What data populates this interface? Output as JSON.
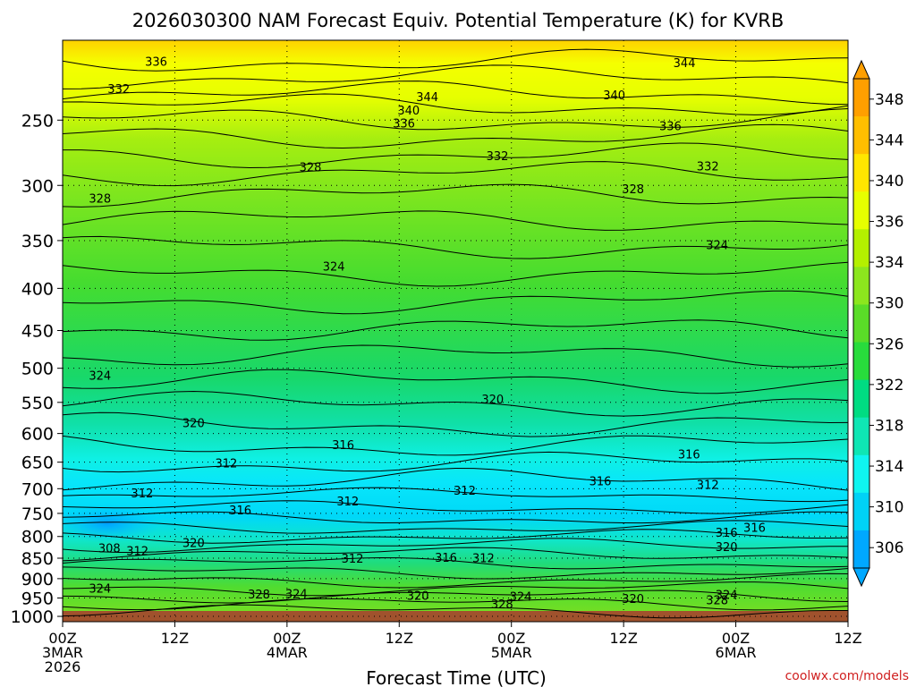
{
  "chart_data": {
    "type": "heatmap",
    "title": "2026030300 NAM Forecast Equiv. Potential Temperature (K) for KVRB",
    "xlabel": "Forecast Time (UTC)",
    "ylabel": "",
    "y_axis": "pressure (hPa), inverted",
    "ylim": [
      1015,
      200
    ],
    "xlim_hours": [
      0,
      84
    ],
    "y_ticks": [
      250,
      300,
      350,
      400,
      450,
      500,
      550,
      600,
      650,
      700,
      750,
      800,
      850,
      900,
      950,
      1000
    ],
    "x_ticks": [
      {
        "hour": 0,
        "line1": "00Z",
        "line2": "3MAR",
        "line3": "2026"
      },
      {
        "hour": 12,
        "line1": "12Z",
        "line2": "",
        "line3": ""
      },
      {
        "hour": 24,
        "line1": "00Z",
        "line2": "4MAR",
        "line3": ""
      },
      {
        "hour": 36,
        "line1": "12Z",
        "line2": "",
        "line3": ""
      },
      {
        "hour": 48,
        "line1": "00Z",
        "line2": "5MAR",
        "line3": ""
      },
      {
        "hour": 60,
        "line1": "12Z",
        "line2": "",
        "line3": ""
      },
      {
        "hour": 72,
        "line1": "00Z",
        "line2": "6MAR",
        "line3": ""
      },
      {
        "hour": 84,
        "line1": "12Z",
        "line2": "",
        "line3": ""
      }
    ],
    "colorbar": {
      "labels": [
        306,
        310,
        314,
        318,
        322,
        326,
        330,
        334,
        336,
        340,
        344,
        348
      ],
      "colors": [
        "#00a8ff",
        "#00d2f6",
        "#0ff5f0",
        "#0fe6b4",
        "#00dc82",
        "#28dc3c",
        "#5adc28",
        "#8ce61e",
        "#b4f000",
        "#e6ff00",
        "#ffe600",
        "#ffbe00",
        "#ff9f00"
      ]
    },
    "contour_labels": [
      {
        "text": "336",
        "hour": 10,
        "p": 212
      },
      {
        "text": "344",
        "hour": 66.5,
        "p": 213
      },
      {
        "text": "332",
        "hour": 6,
        "p": 229
      },
      {
        "text": "344",
        "hour": 39,
        "p": 234
      },
      {
        "text": "340",
        "hour": 59,
        "p": 233
      },
      {
        "text": "340",
        "hour": 37,
        "p": 243
      },
      {
        "text": "336",
        "hour": 36.5,
        "p": 252
      },
      {
        "text": "336",
        "hour": 65,
        "p": 254
      },
      {
        "text": "332",
        "hour": 46.5,
        "p": 276
      },
      {
        "text": "332",
        "hour": 69,
        "p": 284
      },
      {
        "text": "328",
        "hour": 26.5,
        "p": 285
      },
      {
        "text": "328",
        "hour": 61,
        "p": 303
      },
      {
        "text": "328",
        "hour": 4,
        "p": 311
      },
      {
        "text": "324",
        "hour": 70,
        "p": 354
      },
      {
        "text": "324",
        "hour": 29,
        "p": 376
      },
      {
        "text": "324",
        "hour": 4,
        "p": 510
      },
      {
        "text": "320",
        "hour": 46,
        "p": 545
      },
      {
        "text": "320",
        "hour": 14,
        "p": 582
      },
      {
        "text": "316",
        "hour": 30,
        "p": 619
      },
      {
        "text": "316",
        "hour": 67,
        "p": 635
      },
      {
        "text": "312",
        "hour": 17.5,
        "p": 651
      },
      {
        "text": "316",
        "hour": 57.5,
        "p": 685
      },
      {
        "text": "312",
        "hour": 69,
        "p": 692
      },
      {
        "text": "312",
        "hour": 43,
        "p": 703
      },
      {
        "text": "312",
        "hour": 8.5,
        "p": 708
      },
      {
        "text": "312",
        "hour": 30.5,
        "p": 724
      },
      {
        "text": "316",
        "hour": 19,
        "p": 743
      },
      {
        "text": "316",
        "hour": 74,
        "p": 780
      },
      {
        "text": "316",
        "hour": 71,
        "p": 791
      },
      {
        "text": "320",
        "hour": 14,
        "p": 814
      },
      {
        "text": "320",
        "hour": 71,
        "p": 823
      },
      {
        "text": "308",
        "hour": 5,
        "p": 826
      },
      {
        "text": "312",
        "hour": 8,
        "p": 832
      },
      {
        "text": "312",
        "hour": 31,
        "p": 850
      },
      {
        "text": "316",
        "hour": 41,
        "p": 848
      },
      {
        "text": "312",
        "hour": 45,
        "p": 849
      },
      {
        "text": "324",
        "hour": 4,
        "p": 924
      },
      {
        "text": "328",
        "hour": 21,
        "p": 939
      },
      {
        "text": "324",
        "hour": 25,
        "p": 938
      },
      {
        "text": "320",
        "hour": 38,
        "p": 943
      },
      {
        "text": "324",
        "hour": 49,
        "p": 945
      },
      {
        "text": "320",
        "hour": 61,
        "p": 951
      },
      {
        "text": "328",
        "hour": 70,
        "p": 955
      },
      {
        "text": "324",
        "hour": 71,
        "p": 940
      },
      {
        "text": "328",
        "hour": 47,
        "p": 965
      }
    ]
  },
  "watermark": "coolwx.com/models"
}
